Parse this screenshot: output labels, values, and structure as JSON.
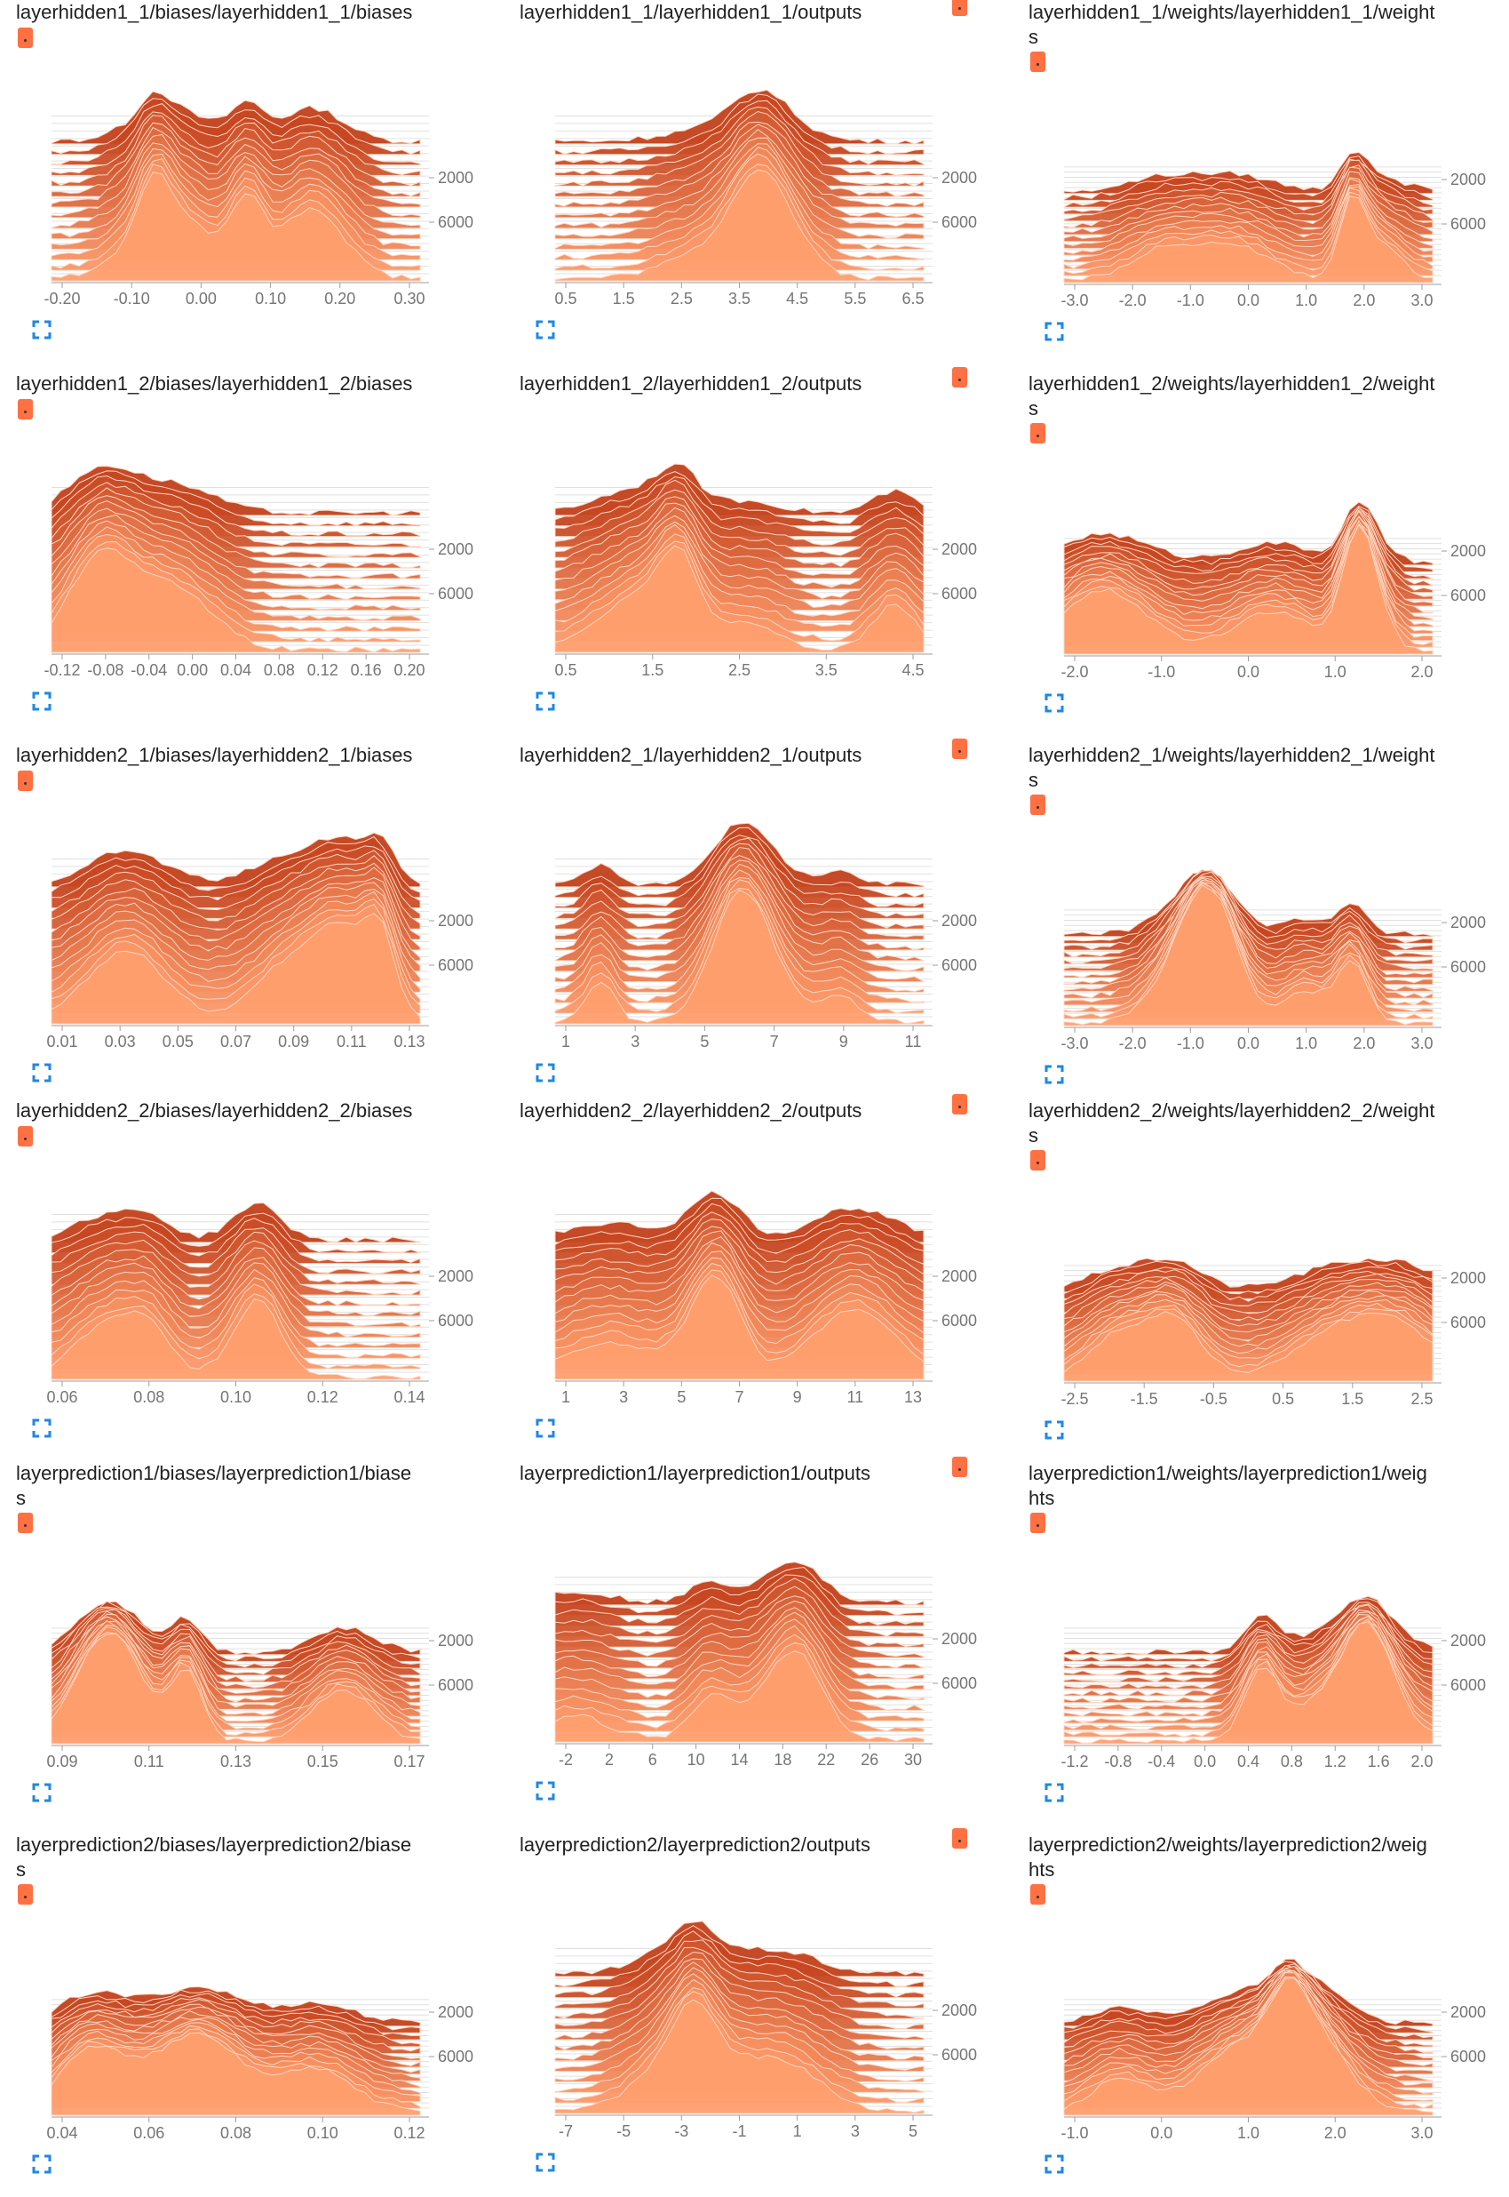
{
  "cards": [
    {
      "title": "layerhidden1_1/biases/layerhidden1_1/biases",
      "two_line": false,
      "badge_pos": "below",
      "x_ticks": [
        "-0.20",
        "-0.10",
        "0.00",
        "0.10",
        "0.20",
        "0.30"
      ],
      "y_ticks": [
        "2000",
        "6000"
      ]
    },
    {
      "title": "layerhidden1_1/layerhidden1_1/outputs",
      "two_line": false,
      "badge_pos": "right",
      "x_ticks": [
        "0.5",
        "1.5",
        "2.5",
        "3.5",
        "4.5",
        "5.5",
        "6.5"
      ],
      "y_ticks": [
        "2000",
        "6000"
      ]
    },
    {
      "title": "layerhidden1_1/weights/layerhidden1_1/weight",
      "title2": "s",
      "two_line": true,
      "badge_pos": "below",
      "x_ticks": [
        "-3.0",
        "-2.0",
        "-1.0",
        "0.0",
        "1.0",
        "2.0",
        "3.0"
      ],
      "y_ticks": [
        "2000",
        "6000"
      ]
    },
    {
      "title": "layerhidden1_2/biases/layerhidden1_2/biases",
      "two_line": false,
      "badge_pos": "below",
      "x_ticks": [
        "-0.12",
        "-0.08",
        "-0.04",
        "0.00",
        "0.04",
        "0.08",
        "0.12",
        "0.16",
        "0.20"
      ],
      "y_ticks": [
        "2000",
        "6000"
      ]
    },
    {
      "title": "layerhidden1_2/layerhidden1_2/outputs",
      "two_line": false,
      "badge_pos": "right",
      "x_ticks": [
        "0.5",
        "1.5",
        "2.5",
        "3.5",
        "4.5"
      ],
      "y_ticks": [
        "2000",
        "6000"
      ]
    },
    {
      "title": "layerhidden1_2/weights/layerhidden1_2/weight",
      "title2": "s",
      "two_line": true,
      "badge_pos": "below",
      "x_ticks": [
        "-2.0",
        "-1.0",
        "0.0",
        "1.0",
        "2.0"
      ],
      "y_ticks": [
        "2000",
        "6000"
      ]
    },
    {
      "title": "layerhidden2_1/biases/layerhidden2_1/biases",
      "two_line": false,
      "badge_pos": "below",
      "x_ticks": [
        "0.01",
        "0.03",
        "0.05",
        "0.07",
        "0.09",
        "0.11",
        "0.13"
      ],
      "y_ticks": [
        "2000",
        "6000"
      ]
    },
    {
      "title": "layerhidden2_1/layerhidden2_1/outputs",
      "two_line": false,
      "badge_pos": "right",
      "x_ticks": [
        "1",
        "3",
        "5",
        "7",
        "9",
        "11"
      ],
      "y_ticks": [
        "2000",
        "6000"
      ]
    },
    {
      "title": "layerhidden2_1/weights/layerhidden2_1/weight",
      "title2": "s",
      "two_line": true,
      "badge_pos": "below",
      "x_ticks": [
        "-3.0",
        "-2.0",
        "-1.0",
        "0.0",
        "1.0",
        "2.0",
        "3.0"
      ],
      "y_ticks": [
        "2000",
        "6000"
      ]
    },
    {
      "title": "layerhidden2_2/biases/layerhidden2_2/biases",
      "two_line": false,
      "badge_pos": "below",
      "x_ticks": [
        "0.06",
        "0.08",
        "0.10",
        "0.12",
        "0.14"
      ],
      "y_ticks": [
        "2000",
        "6000"
      ]
    },
    {
      "title": "layerhidden2_2/layerhidden2_2/outputs",
      "two_line": false,
      "badge_pos": "right",
      "x_ticks": [
        "1",
        "3",
        "5",
        "7",
        "9",
        "11",
        "13"
      ],
      "y_ticks": [
        "2000",
        "6000"
      ]
    },
    {
      "title": "layerhidden2_2/weights/layerhidden2_2/weight",
      "title2": "s",
      "two_line": true,
      "badge_pos": "below",
      "x_ticks": [
        "-2.5",
        "-1.5",
        "-0.5",
        "0.5",
        "1.5",
        "2.5"
      ],
      "y_ticks": [
        "2000",
        "6000"
      ]
    },
    {
      "title": "layerprediction1/biases/layerprediction1/biase",
      "title2": "s",
      "two_line": true,
      "badge_pos": "below",
      "x_ticks": [
        "0.09",
        "0.11",
        "0.13",
        "0.15",
        "0.17"
      ],
      "y_ticks": [
        "2000",
        "6000"
      ]
    },
    {
      "title": "layerprediction1/layerprediction1/outputs",
      "two_line": false,
      "badge_pos": "right",
      "x_ticks": [
        "-2",
        "2",
        "6",
        "10",
        "14",
        "18",
        "22",
        "26",
        "30"
      ],
      "y_ticks": [
        "2000",
        "6000"
      ]
    },
    {
      "title": "layerprediction1/weights/layerprediction1/weig",
      "title2": "hts",
      "two_line": true,
      "badge_pos": "below",
      "x_ticks": [
        "-1.2",
        "-0.8",
        "-0.4",
        "0.0",
        "0.4",
        "0.8",
        "1.2",
        "1.6",
        "2.0"
      ],
      "y_ticks": [
        "2000",
        "6000"
      ]
    },
    {
      "title": "layerprediction2/biases/layerprediction2/biase",
      "title2": "s",
      "two_line": true,
      "badge_pos": "below",
      "x_ticks": [
        "0.04",
        "0.06",
        "0.08",
        "0.10",
        "0.12"
      ],
      "y_ticks": [
        "2000",
        "6000"
      ]
    },
    {
      "title": "layerprediction2/layerprediction2/outputs",
      "two_line": false,
      "badge_pos": "right",
      "x_ticks": [
        "-7",
        "-5",
        "-3",
        "-1",
        "1",
        "3",
        "5"
      ],
      "y_ticks": [
        "2000",
        "6000"
      ]
    },
    {
      "title": "layerprediction2/weights/layerprediction2/weig",
      "title2": "hts",
      "two_line": true,
      "badge_pos": "below",
      "x_ticks": [
        "-1.0",
        "0.0",
        "1.0",
        "2.0",
        "3.0"
      ],
      "y_ticks": [
        "2000",
        "6000"
      ]
    }
  ],
  "colors": {
    "dark": "#c1401c",
    "mid": "#e8633a",
    "light": "#ff9e6e",
    "pale": "#ffd5bf",
    "grid": "#e0e0e0",
    "axis": "#9e9e9e",
    "tick_text": "#757575",
    "expand_icon": "#1e88e5",
    "badge": "#ff7043"
  },
  "icons": {
    "expand": "expand-icon",
    "badge": "run-color-badge"
  }
}
